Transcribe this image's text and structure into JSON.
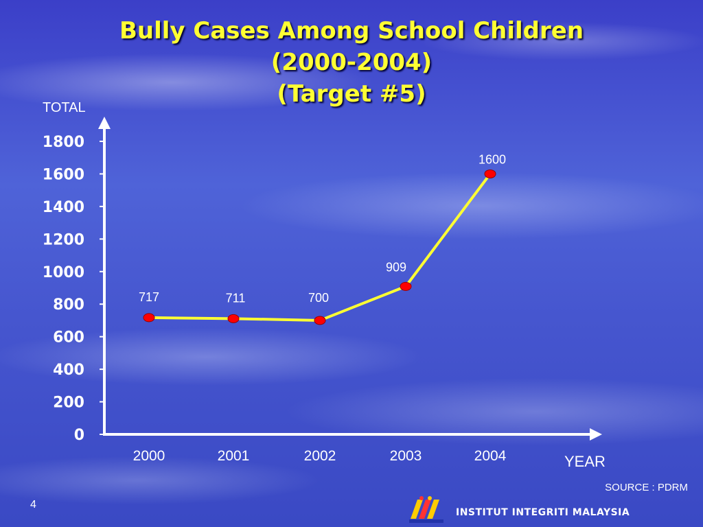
{
  "title": {
    "line1": "Bully Cases Among School Children",
    "line2": "(2000-2004)",
    "line3": "(Target #5)"
  },
  "source": "SOURCE : PDRM",
  "page_number": "4",
  "footer": {
    "org": "INSTITUT INTEGRITI MALAYSIA",
    "logo_text": "INSTITUT INTEGRITI MALAYSIA"
  },
  "colors": {
    "line": "#ffff33",
    "marker": "#ff0000",
    "axis": "#ffffff",
    "title": "#ffff33"
  },
  "chart_data": {
    "type": "line",
    "title": "Bully Cases Among School Children (2000-2004) (Target #5)",
    "xlabel": "YEAR",
    "ylabel": "TOTAL",
    "categories": [
      "2000",
      "2001",
      "2002",
      "2003",
      "2004"
    ],
    "values": [
      717,
      711,
      700,
      909,
      1600
    ],
    "data_labels": [
      "717",
      "711",
      "700",
      "909",
      "1600"
    ],
    "y_ticks": [
      0,
      200,
      400,
      600,
      800,
      1000,
      1200,
      1400,
      1600,
      1800
    ],
    "ylim": [
      0,
      1800
    ],
    "grid": false,
    "legend": "none"
  }
}
